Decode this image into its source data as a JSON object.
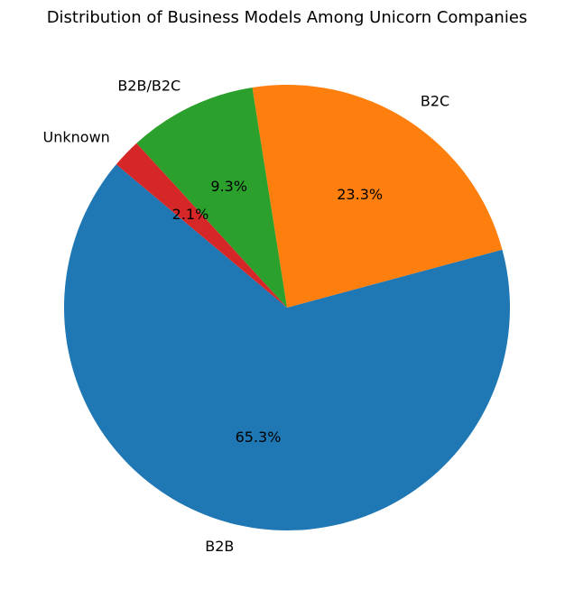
{
  "chart_data": {
    "type": "pie",
    "title": "Distribution of Business Models Among Unicorn Companies",
    "start_angle_deg": 140,
    "direction": "counterclockwise",
    "slices": [
      {
        "label": "B2B",
        "value": 65.3,
        "pct_text": "65.3%",
        "color": "#1f77b4"
      },
      {
        "label": "B2C",
        "value": 23.3,
        "pct_text": "23.3%",
        "color": "#ff7f0e"
      },
      {
        "label": "B2B/B2C",
        "value": 9.3,
        "pct_text": "9.3%",
        "color": "#2ca02c"
      },
      {
        "label": "Unknown",
        "value": 2.1,
        "pct_text": "2.1%",
        "color": "#d62728"
      }
    ]
  }
}
